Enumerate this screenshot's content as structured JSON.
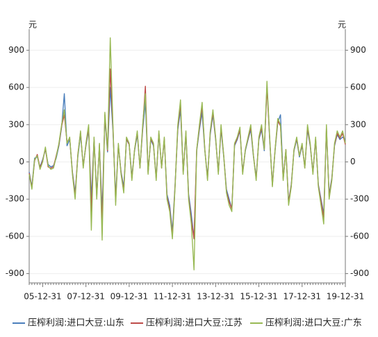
{
  "chart_data": {
    "type": "line",
    "y_label": "元",
    "ylim": [
      -975,
      1070
    ],
    "yticks": [
      -900,
      -600,
      -300,
      0,
      300,
      600,
      900
    ],
    "grid": true,
    "legend": "bottom",
    "categories": [
      null,
      null,
      null,
      null,
      null,
      "05-12-31",
      null,
      null,
      null,
      null,
      null,
      null,
      null,
      null,
      null,
      null,
      null,
      null,
      null,
      null,
      null,
      "07-12-31",
      null,
      null,
      null,
      null,
      null,
      null,
      null,
      null,
      null,
      null,
      null,
      null,
      null,
      null,
      null,
      "09-12-31",
      null,
      null,
      null,
      null,
      null,
      null,
      null,
      null,
      null,
      null,
      null,
      null,
      null,
      null,
      null,
      "11-12-31",
      null,
      null,
      null,
      null,
      null,
      null,
      null,
      null,
      null,
      null,
      null,
      null,
      null,
      null,
      null,
      "13-12-31",
      null,
      null,
      null,
      null,
      null,
      null,
      null,
      null,
      null,
      null,
      null,
      null,
      null,
      null,
      null,
      "15-12-31",
      null,
      null,
      null,
      null,
      null,
      null,
      null,
      null,
      null,
      null,
      null,
      null,
      null,
      null,
      null,
      "17-12-31",
      null,
      null,
      null,
      null,
      null,
      null,
      null,
      null,
      null,
      null,
      null,
      null,
      null,
      null,
      null,
      "19-12-31"
    ],
    "series": [
      {
        "name": "压榨利润:进口大豆:山东",
        "color": "#4a7ebb",
        "values": [
          -80,
          -200,
          30,
          40,
          -40,
          20,
          100,
          -20,
          -40,
          -30,
          30,
          130,
          280,
          550,
          130,
          180,
          -80,
          -250,
          40,
          220,
          -30,
          130,
          260,
          -300,
          180,
          -250,
          120,
          -400,
          350,
          80,
          600,
          250,
          -280,
          130,
          -80,
          -200,
          180,
          140,
          -120,
          90,
          220,
          -40,
          260,
          480,
          -80,
          180,
          130,
          -120,
          220,
          -40,
          180,
          -260,
          -350,
          -560,
          -180,
          260,
          420,
          -80,
          220,
          -260,
          -420,
          -620,
          90,
          260,
          400,
          90,
          -120,
          220,
          380,
          180,
          -80,
          260,
          40,
          -220,
          -300,
          -380,
          130,
          180,
          250,
          -80,
          90,
          180,
          260,
          40,
          -120,
          180,
          260,
          90,
          620,
          180,
          -180,
          90,
          320,
          380,
          -130,
          90,
          -320,
          -180,
          90,
          180,
          40,
          130,
          -40,
          260,
          130,
          -80,
          180,
          -180,
          -300,
          -420,
          260,
          -260,
          -130,
          130,
          220,
          180,
          200,
          180
        ]
      },
      {
        "name": "压榨利润:进口大豆:江苏",
        "color": "#be4b48",
        "values": [
          -90,
          -210,
          10,
          60,
          -50,
          10,
          110,
          -40,
          -50,
          -40,
          50,
          140,
          290,
          380,
          160,
          190,
          -90,
          -280,
          60,
          240,
          -40,
          140,
          280,
          -400,
          190,
          -280,
          140,
          -500,
          380,
          90,
          750,
          280,
          -320,
          140,
          -90,
          -230,
          190,
          140,
          -140,
          100,
          240,
          -50,
          280,
          610,
          -90,
          190,
          140,
          -140,
          240,
          -50,
          190,
          -280,
          -380,
          -600,
          -190,
          280,
          470,
          -90,
          240,
          -280,
          -470,
          -620,
          100,
          280,
          450,
          100,
          -140,
          240,
          400,
          190,
          -90,
          280,
          50,
          -240,
          -320,
          -380,
          140,
          190,
          260,
          -90,
          100,
          190,
          280,
          50,
          -140,
          190,
          280,
          100,
          600,
          190,
          -190,
          100,
          330,
          290,
          -140,
          100,
          -330,
          -190,
          100,
          190,
          50,
          140,
          -50,
          280,
          140,
          -90,
          190,
          -190,
          -320,
          -450,
          280,
          -280,
          -140,
          140,
          230,
          190,
          230,
          140
        ]
      },
      {
        "name": "压榨利润:进口大豆:广东",
        "color": "#98b954",
        "values": [
          -100,
          -220,
          20,
          50,
          -60,
          0,
          120,
          -30,
          -60,
          -50,
          40,
          150,
          300,
          420,
          150,
          200,
          -100,
          -300,
          50,
          250,
          -50,
          150,
          300,
          -550,
          200,
          -300,
          150,
          -630,
          400,
          100,
          1000,
          300,
          -350,
          150,
          -100,
          -250,
          200,
          150,
          -150,
          100,
          250,
          -50,
          300,
          550,
          -100,
          200,
          150,
          -150,
          250,
          -50,
          200,
          -300,
          -400,
          -620,
          -200,
          300,
          500,
          -100,
          250,
          -300,
          -500,
          -870,
          100,
          300,
          480,
          100,
          -150,
          250,
          420,
          200,
          -100,
          300,
          50,
          -250,
          -350,
          -400,
          150,
          200,
          280,
          -100,
          100,
          200,
          300,
          50,
          -150,
          200,
          300,
          100,
          650,
          200,
          -200,
          100,
          350,
          300,
          -150,
          100,
          -350,
          -200,
          100,
          200,
          50,
          150,
          -50,
          300,
          150,
          -100,
          200,
          -200,
          -350,
          -500,
          300,
          -300,
          -150,
          150,
          250,
          200,
          250,
          150
        ]
      }
    ]
  }
}
